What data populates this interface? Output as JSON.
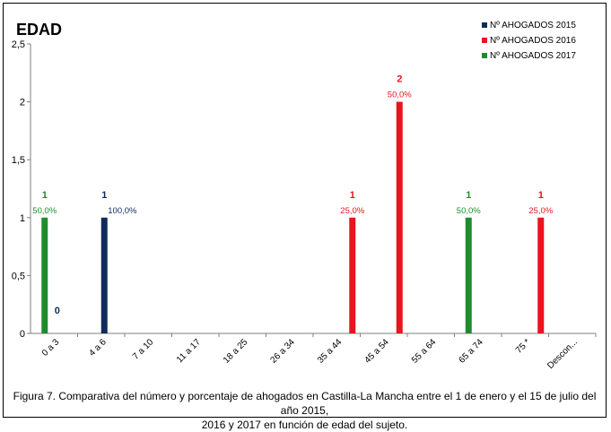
{
  "chart_data": {
    "type": "bar",
    "title": "EDAD",
    "categories": [
      "0 a 3",
      "4 a 6",
      "7 a 10",
      "11 a 17",
      "18 a 25",
      "26 a 34",
      "35 a 44",
      "45 a 54",
      "55 a 64",
      "65 a 74",
      "75 *",
      "Descon..."
    ],
    "ylim": [
      0,
      2.5
    ],
    "yticks": [
      "0",
      "0,5",
      "1",
      "1,5",
      "2",
      "2,5"
    ],
    "grid": false,
    "legend_position": "top-right",
    "series": [
      {
        "name": "Nº AHOGADOS 2015",
        "color": "#0f2b5b",
        "values": [
          0,
          1,
          0,
          0,
          0,
          0,
          0,
          0,
          0,
          0,
          0,
          0
        ],
        "labels": [
          "0",
          "1",
          "",
          "",
          "",
          "",
          "",
          "",
          "",
          "",
          "",
          ""
        ],
        "pct": [
          "",
          "100,0%",
          "",
          "",
          "",
          "",
          "",
          "",
          "",
          "",
          "",
          ""
        ]
      },
      {
        "name": "Nº AHOGADOS 2016",
        "color": "#e8141e",
        "values": [
          0,
          0,
          0,
          0,
          0,
          0,
          1,
          2,
          0,
          0,
          1,
          0
        ],
        "labels": [
          "",
          "",
          "",
          "",
          "",
          "",
          "1",
          "2",
          "",
          "",
          "1",
          ""
        ],
        "pct": [
          "",
          "",
          "",
          "",
          "",
          "",
          "25,0%",
          "50,0%",
          "",
          "",
          "25,0%",
          ""
        ]
      },
      {
        "name": "Nº AHOGADOS 2017",
        "color": "#1e8c2e",
        "values": [
          1,
          0,
          0,
          0,
          0,
          0,
          0,
          0,
          0,
          1,
          0,
          0
        ],
        "labels": [
          "1",
          "",
          "",
          "",
          "",
          "",
          "",
          "",
          "",
          "1",
          "",
          ""
        ],
        "pct": [
          "50,0%",
          "",
          "",
          "",
          "",
          "",
          "",
          "",
          "",
          "50,0%",
          "",
          ""
        ]
      }
    ]
  },
  "caption": {
    "line1": "Figura 7. Comparativa del número y porcentaje de ahogados en Castilla-La Mancha entre el 1 de enero y el 15 de julio del año 2015,",
    "line2": "2016 y 2017 en función de edad del sujeto."
  }
}
